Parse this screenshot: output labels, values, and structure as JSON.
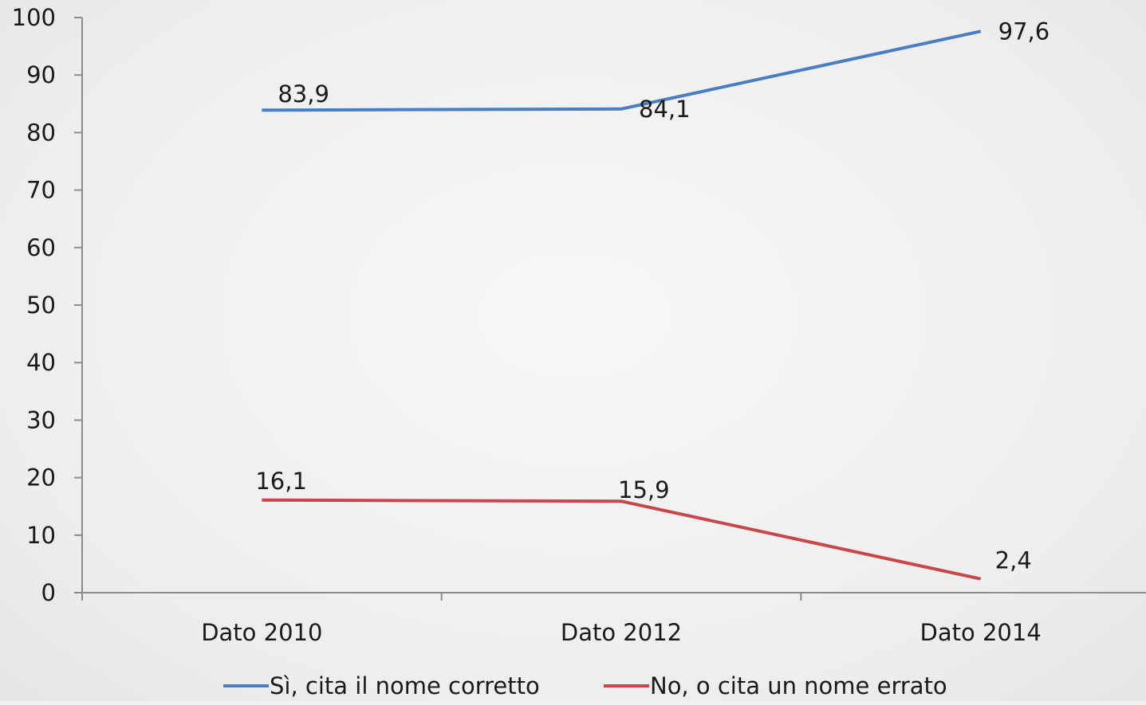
{
  "chart_data": {
    "type": "line",
    "categories": [
      "Dato 2010",
      "Dato 2012",
      "Dato 2014"
    ],
    "ylim": [
      0,
      100
    ],
    "yticks": [
      "0",
      "10",
      "20",
      "30",
      "40",
      "50",
      "60",
      "70",
      "80",
      "90",
      "100"
    ],
    "grid": false,
    "legend_position": "bottom",
    "series": [
      {
        "name": "Sì, cita il nome corretto",
        "values": [
          83.9,
          84.1,
          97.6
        ],
        "labels": [
          "83,9",
          "84,1",
          "97,6"
        ],
        "color": "#4a7ec0"
      },
      {
        "name": "No, o cita un nome errato",
        "values": [
          16.1,
          15.9,
          2.4
        ],
        "labels": [
          "16,1",
          "15,9",
          "2,4"
        ],
        "color": "#c8474a"
      }
    ]
  }
}
